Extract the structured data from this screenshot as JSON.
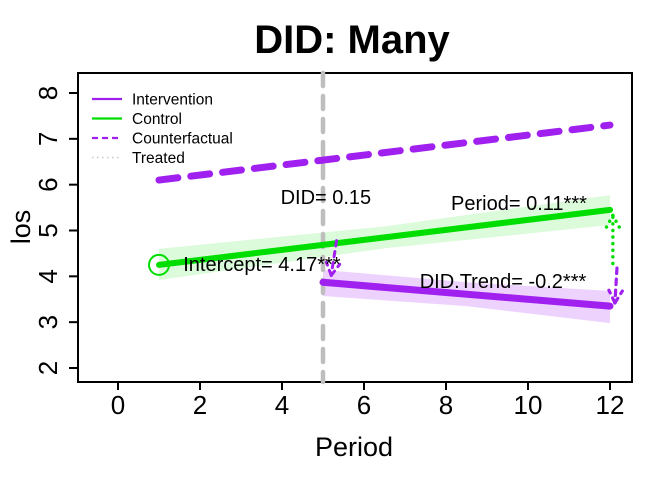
{
  "chart_data": {
    "type": "line",
    "title": "DID: Many",
    "xlabel": "Period",
    "ylabel": "los",
    "x_ticks": [
      0,
      2,
      4,
      6,
      8,
      10,
      12
    ],
    "y_ticks": [
      2,
      3,
      4,
      5,
      6,
      7,
      8
    ],
    "xlim": [
      -1,
      12.5
    ],
    "ylim": [
      1.7,
      8.45
    ],
    "grid": false,
    "colors": {
      "purple": "#A020F0",
      "green": "#00DE00",
      "gray_vline": "#BEBEBE",
      "treated_gray": "#C8C8C8",
      "green_band": "rgba(0,230,0,0.14)",
      "purple_band": "rgba(160,32,240,0.2)"
    },
    "legend": {
      "position": "top-left",
      "items": [
        {
          "label": "Intervention",
          "color": "#A020F0",
          "style": "solid"
        },
        {
          "label": "Control",
          "color": "#00DE00",
          "style": "solid"
        },
        {
          "label": "Counterfactual",
          "color": "#A020F0",
          "style": "dashed"
        },
        {
          "label": "Treated",
          "color": "#C8C8C8",
          "style": "dotted"
        }
      ]
    },
    "vline": {
      "x": 5,
      "color": "#BEBEBE",
      "style": "dashed",
      "width": 4.5
    },
    "series": [
      {
        "id": "counterfactual",
        "name": "Counterfactual",
        "color": "#A020F0",
        "style": "dashed",
        "width": 7,
        "points": [
          [
            1,
            6.1
          ],
          [
            12,
            7.3
          ]
        ]
      },
      {
        "id": "control",
        "name": "Control",
        "color": "#00DE00",
        "style": "solid",
        "width": 6,
        "points": [
          [
            1,
            4.25
          ],
          [
            12,
            5.45
          ]
        ],
        "band": {
          "color": "rgba(0,230,0,0.14)",
          "points": [
            [
              1,
              3.92,
              4.6
            ],
            [
              6.5,
              4.61,
              5.09
            ],
            [
              12,
              5.12,
              5.77
            ]
          ]
        },
        "marker": {
          "x": 1,
          "y": 4.25,
          "shape": "open-circle",
          "r": 10
        }
      },
      {
        "id": "intervention",
        "name": "Intervention",
        "color": "#A020F0",
        "style": "solid",
        "width": 7,
        "points": [
          [
            5,
            3.87
          ],
          [
            12,
            3.35
          ]
        ],
        "band": {
          "color": "rgba(160,32,240,0.2)",
          "points": [
            [
              5,
              3.57,
              4.14
            ],
            [
              8.5,
              3.35,
              3.87
            ],
            [
              12,
              2.98,
              3.68
            ]
          ]
        }
      }
    ],
    "arrows": [
      {
        "id": "effect-arrow-green",
        "color": "#00DE00",
        "dash": "0.1 6.5",
        "width": 3.4,
        "p1": [
          12.07,
          4.28
        ],
        "p2": [
          12.07,
          5.33
        ]
      },
      {
        "id": "effect-arrow-purple",
        "color": "#A020F0",
        "dash": "5.5 5.5",
        "width": 3.2,
        "p1": [
          12.17,
          4.18
        ],
        "p2": [
          12.12,
          3.42
        ]
      },
      {
        "id": "did-arrow-start",
        "color": "#A020F0",
        "dash": "5.5 5.5",
        "width": 3.0,
        "p1": [
          5.33,
          4.78
        ],
        "p2": [
          5.2,
          4.02
        ]
      }
    ],
    "annotations": [
      {
        "id": "did",
        "text": "DID= 0.15",
        "x": 5.07,
        "y": 5.73
      },
      {
        "id": "period",
        "text": "Period= 0.11***",
        "x": 9.78,
        "y": 5.6
      },
      {
        "id": "intercept",
        "text": "Intercept= 4.17***",
        "x": 3.51,
        "y": 4.27
      },
      {
        "id": "did-trend",
        "text": "DID.Trend= -0.2***",
        "x": 9.39,
        "y": 3.9
      }
    ]
  }
}
